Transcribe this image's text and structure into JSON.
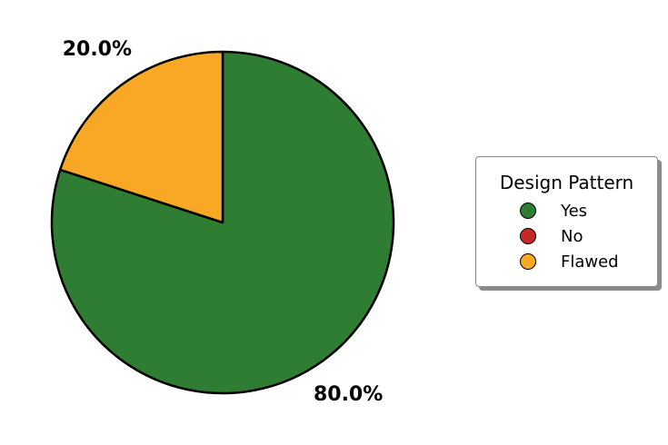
{
  "chart_data": {
    "type": "pie",
    "slices": [
      {
        "name": "Yes",
        "value": 80.0,
        "label": "80.0%",
        "color": "#2e7d32"
      },
      {
        "name": "No",
        "value": 0.0,
        "label": "",
        "color": "#c62828"
      },
      {
        "name": "Flawed",
        "value": 20.0,
        "label": "20.0%",
        "color": "#f9a825"
      }
    ],
    "start_angle_deg": 90,
    "direction": "clockwise",
    "legend": {
      "title": "Design Pattern",
      "placement": "right",
      "entries": [
        "Yes",
        "No",
        "Flawed"
      ]
    }
  }
}
